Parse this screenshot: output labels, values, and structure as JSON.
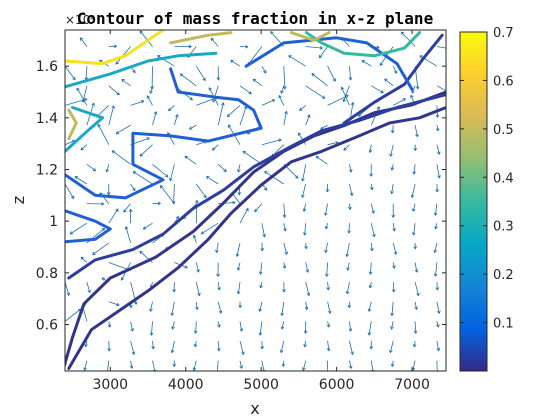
{
  "chart_data": {
    "type": "contour",
    "title": "Contour of mass fraction in x-z plane",
    "xlabel": "x",
    "ylabel": "z",
    "y_exponent_label": "×10⁴",
    "xlim": [
      2400,
      7450
    ],
    "ylim": [
      4200,
      17400
    ],
    "x_ticks": [
      3000,
      4000,
      5000,
      6000,
      7000
    ],
    "x_tick_labels": [
      "3000",
      "4000",
      "5000",
      "6000",
      "7000"
    ],
    "y_ticks": [
      6000,
      8000,
      10000,
      12000,
      14000,
      16000
    ],
    "y_tick_labels": [
      "0.6",
      "0.8",
      "1",
      "1.2",
      "1.4",
      "1.6"
    ],
    "colorbar": {
      "limits": [
        0.0,
        0.7
      ],
      "ticks": [
        0.1,
        0.2,
        0.3,
        0.4,
        0.5,
        0.6,
        0.7
      ],
      "tick_labels": [
        "0.1",
        "0.2",
        "0.3",
        "0.4",
        "0.5",
        "0.6",
        "0.7"
      ],
      "colormap": "parula"
    },
    "contours": [
      {
        "level": 0.02,
        "color": "#33358a",
        "path": [
          [
            2400,
            4500
          ],
          [
            2500,
            5500
          ],
          [
            2650,
            6800
          ],
          [
            3000,
            7800
          ],
          [
            3600,
            8600
          ],
          [
            4100,
            9600
          ],
          [
            4500,
            10700
          ],
          [
            4900,
            11900
          ],
          [
            5300,
            12700
          ],
          [
            5700,
            13300
          ],
          [
            6100,
            13700
          ],
          [
            6500,
            14200
          ],
          [
            7000,
            14500
          ],
          [
            7450,
            15000
          ]
        ]
      },
      {
        "level": 0.02,
        "color": "#33358a",
        "path": [
          [
            2450,
            4300
          ],
          [
            2750,
            5800
          ],
          [
            3100,
            6500
          ],
          [
            3500,
            7300
          ],
          [
            3900,
            8200
          ],
          [
            4300,
            9300
          ],
          [
            4600,
            10300
          ],
          [
            5000,
            11400
          ],
          [
            5400,
            12300
          ],
          [
            5800,
            12700
          ],
          [
            6300,
            13300
          ],
          [
            6700,
            13800
          ],
          [
            7100,
            14000
          ],
          [
            7450,
            14400
          ]
        ]
      },
      {
        "level": 0.03,
        "color": "#2e3e9c",
        "path": [
          [
            2450,
            7800
          ],
          [
            2800,
            8500
          ],
          [
            3300,
            8900
          ],
          [
            3700,
            9500
          ],
          [
            4100,
            10500
          ],
          [
            4500,
            11200
          ],
          [
            4900,
            12100
          ],
          [
            5400,
            12900
          ],
          [
            5800,
            13500
          ],
          [
            6300,
            13900
          ],
          [
            6800,
            14400
          ],
          [
            7450,
            14900
          ]
        ]
      },
      {
        "level": 0.03,
        "color": "#2e3e9c",
        "path": [
          [
            6100,
            13800
          ],
          [
            6500,
            14600
          ],
          [
            6900,
            15300
          ],
          [
            7150,
            16300
          ],
          [
            7400,
            17200
          ]
        ]
      },
      {
        "level": 0.1,
        "color": "#1f60d3",
        "path": [
          [
            3800,
            15900
          ],
          [
            3900,
            15000
          ],
          [
            4400,
            14800
          ],
          [
            4700,
            14700
          ],
          [
            4900,
            14300
          ],
          [
            5000,
            13600
          ],
          [
            4300,
            13100
          ],
          [
            3800,
            13300
          ],
          [
            3300,
            13400
          ],
          [
            3300,
            12200
          ],
          [
            3700,
            11600
          ],
          [
            3200,
            10900
          ],
          [
            2800,
            11000
          ],
          [
            2400,
            11800
          ]
        ]
      },
      {
        "level": 0.1,
        "color": "#1f60d3",
        "path": [
          [
            4800,
            16000
          ],
          [
            5300,
            16900
          ],
          [
            6000,
            17100
          ],
          [
            6400,
            16900
          ],
          [
            6800,
            16100
          ],
          [
            7000,
            15100
          ]
        ]
      },
      {
        "level": 0.1,
        "color": "#1f60d3",
        "path": [
          [
            2400,
            10400
          ],
          [
            2800,
            10000
          ],
          [
            3000,
            9700
          ],
          [
            2800,
            9300
          ],
          [
            2400,
            9200
          ]
        ]
      },
      {
        "level": 0.25,
        "color": "#1da7c6",
        "path": [
          [
            2400,
            15200
          ],
          [
            3000,
            15700
          ],
          [
            3500,
            16200
          ],
          [
            3900,
            16400
          ],
          [
            4400,
            16500
          ]
        ]
      },
      {
        "level": 0.25,
        "color": "#1da7c6",
        "path": [
          [
            2400,
            12700
          ],
          [
            2700,
            13500
          ],
          [
            2900,
            14000
          ],
          [
            2500,
            14400
          ]
        ]
      },
      {
        "level": 0.35,
        "color": "#35b9a2",
        "path": [
          [
            5600,
            17300
          ],
          [
            5800,
            16900
          ],
          [
            6100,
            16500
          ],
          [
            6500,
            16400
          ],
          [
            6900,
            16700
          ],
          [
            7100,
            17300
          ]
        ]
      },
      {
        "level": 0.5,
        "color": "#c2b85e",
        "path": [
          [
            3800,
            16900
          ],
          [
            4300,
            17200
          ],
          [
            4600,
            17300
          ]
        ]
      },
      {
        "level": 0.5,
        "color": "#c2b85e",
        "path": [
          [
            5400,
            17300
          ],
          [
            5700,
            17000
          ],
          [
            5900,
            17300
          ]
        ]
      },
      {
        "level": 0.5,
        "color": "#c2b85e",
        "path": [
          [
            2450,
            13200
          ],
          [
            2550,
            13800
          ],
          [
            2450,
            14300
          ]
        ]
      },
      {
        "level": 0.65,
        "color": "#f5e21a",
        "path": [
          [
            2400,
            16200
          ],
          [
            2900,
            16100
          ],
          [
            3200,
            16400
          ],
          [
            3500,
            17000
          ],
          [
            3700,
            17400
          ]
        ]
      }
    ],
    "vector_field": {
      "color": "#1b6fae",
      "x_start": 2400,
      "x_step": 290,
      "nx": 18,
      "y_start": 4600,
      "y_step": 760,
      "ny": 17
    }
  }
}
